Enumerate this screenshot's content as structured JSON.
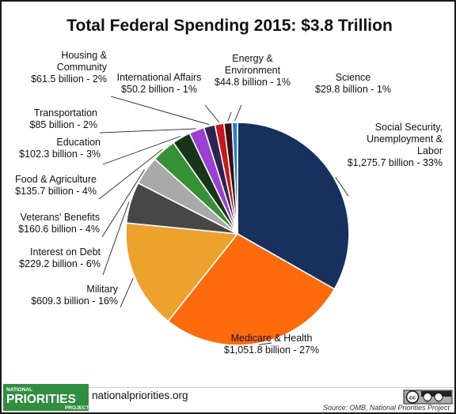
{
  "chart_data": {
    "type": "pie",
    "title": "Total Federal Spending 2015: $3.8 Trillion",
    "start": "12 o'clock, clockwise",
    "slices": [
      {
        "label": [
          "Social Security,",
          "Unemployment &",
          "Labor"
        ],
        "value_text": "$1,275.7 billion - 33%",
        "value": 1275.7,
        "percent": 33,
        "color": "#17305e"
      },
      {
        "label": [
          "Medicare & Health"
        ],
        "value_text": "$1,051.8 billion - 27%",
        "value": 1051.8,
        "percent": 27,
        "color": "#ff6a0c"
      },
      {
        "label": [
          "Military"
        ],
        "value_text": "$609.3 billion - 16%",
        "value": 609.3,
        "percent": 16,
        "color": "#eea22e"
      },
      {
        "label": [
          "Interest on Debt"
        ],
        "value_text": "$229.2 billion - 6%",
        "value": 229.2,
        "percent": 6,
        "color": "#474747"
      },
      {
        "label": [
          "Veterans' Benefits"
        ],
        "value_text": "$160.6 billion - 4%",
        "value": 160.6,
        "percent": 4,
        "color": "#a9a9a9"
      },
      {
        "label": [
          "Food & Agriculture"
        ],
        "value_text": "$135.7 billion - 4%",
        "value": 135.7,
        "percent": 4,
        "color": "#369135"
      },
      {
        "label": [
          "Education"
        ],
        "value_text": "$102.3 billion - 3%",
        "value": 102.3,
        "percent": 3,
        "color": "#173517"
      },
      {
        "label": [
          "Transportation"
        ],
        "value_text": "$85 billion - 2%",
        "value": 85,
        "percent": 2,
        "color": "#9a40d3"
      },
      {
        "label": [
          "Housing &",
          "Community"
        ],
        "value_text": "$61.5 billion - 2%",
        "value": 61.5,
        "percent": 2,
        "color": "#2f2250"
      },
      {
        "label": [
          "International Affairs"
        ],
        "value_text": "$50.2 billion - 1%",
        "value": 50.2,
        "percent": 1,
        "color": "#c8181d"
      },
      {
        "label": [
          "Energy &",
          "Environment"
        ],
        "value_text": "$44.8 billion - 1%",
        "value": 44.8,
        "percent": 1,
        "color": "#3e0e0e"
      },
      {
        "label": [
          "Science"
        ],
        "value_text": "$29.8 billion - 1%",
        "value": 29.8,
        "percent": 1,
        "color": "#1f7fd8"
      }
    ]
  },
  "footer": {
    "logo_line1": "NATIONAL",
    "logo_line2": "PRIORITIES",
    "logo_line3": "PROJECT",
    "url": "nationalpriorities.org",
    "license_cc": "cc",
    "license_by": "BY",
    "license_nc": "NC",
    "source": "Source: OMB, National Priorities Project",
    "brand_color": "#2f8f3e"
  }
}
